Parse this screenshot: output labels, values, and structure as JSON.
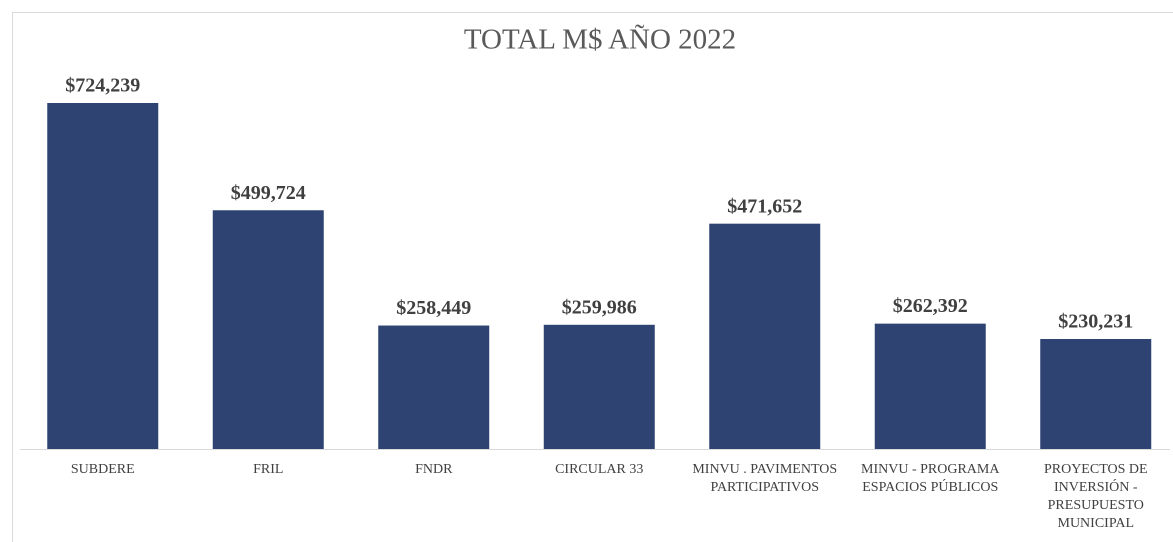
{
  "chart_data": {
    "type": "bar",
    "title": "TOTAL M$ AÑO 2022",
    "categories": [
      "SUBDERE",
      "FRIL",
      "FNDR",
      "CIRCULAR 33",
      "MINVU . PAVIMENTOS PARTICIPATIVOS",
      "MINVU - PROGRAMA ESPACIOS PÚBLICOS",
      "PROYECTOS DE INVERSIÓN - PRESUPUESTO MUNICIPAL"
    ],
    "values": [
      724239,
      499724,
      258449,
      259986,
      471652,
      262392,
      230231
    ],
    "value_labels": [
      "$724,239",
      "$499,724",
      "$258,449",
      "$259,986",
      "$471,652",
      "$262,392",
      "$230,231"
    ],
    "color": "#2e4372"
  }
}
